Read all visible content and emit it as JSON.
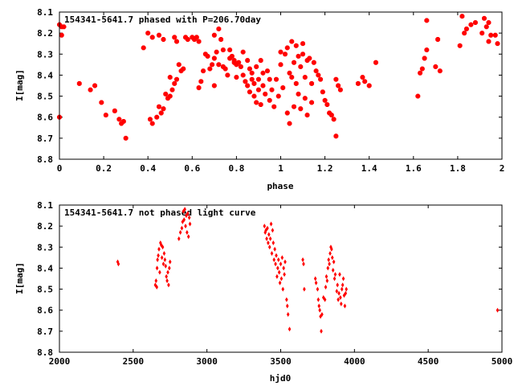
{
  "chart_data": [
    {
      "type": "scatter",
      "title": "154341-5641.7 phased with P=206.70day",
      "xlabel": "phase",
      "ylabel": "I[mag]",
      "xlim": [
        0,
        2
      ],
      "ylim": [
        8.1,
        8.8
      ],
      "y_inverted": true,
      "x_ticks": [
        "0",
        "0.2",
        "0.4",
        "0.6",
        "0.8",
        "1",
        "1.2",
        "1.4",
        "1.6",
        "1.8",
        "2"
      ],
      "y_ticks": [
        "8.1",
        "8.2",
        "8.3",
        "8.4",
        "8.5",
        "8.6",
        "8.7",
        "8.8"
      ],
      "marker": "star",
      "marker_color": "#ff0000",
      "points": [
        [
          0.0,
          8.6
        ],
        [
          0.0,
          8.16
        ],
        [
          0.01,
          8.17
        ],
        [
          0.01,
          8.21
        ],
        [
          0.02,
          8.17
        ],
        [
          0.09,
          8.44
        ],
        [
          0.14,
          8.47
        ],
        [
          0.16,
          8.45
        ],
        [
          0.19,
          8.53
        ],
        [
          0.21,
          8.59
        ],
        [
          0.25,
          8.57
        ],
        [
          0.27,
          8.61
        ],
        [
          0.28,
          8.63
        ],
        [
          0.29,
          8.62
        ],
        [
          0.3,
          8.7
        ],
        [
          0.38,
          8.27
        ],
        [
          0.4,
          8.2
        ],
        [
          0.42,
          8.22
        ],
        [
          0.41,
          8.61
        ],
        [
          0.42,
          8.63
        ],
        [
          0.44,
          8.6
        ],
        [
          0.45,
          8.55
        ],
        [
          0.46,
          8.58
        ],
        [
          0.47,
          8.56
        ],
        [
          0.45,
          8.21
        ],
        [
          0.47,
          8.23
        ],
        [
          0.48,
          8.49
        ],
        [
          0.49,
          8.51
        ],
        [
          0.5,
          8.5
        ],
        [
          0.51,
          8.47
        ],
        [
          0.5,
          8.41
        ],
        [
          0.52,
          8.44
        ],
        [
          0.53,
          8.42
        ],
        [
          0.52,
          8.22
        ],
        [
          0.53,
          8.24
        ],
        [
          0.54,
          8.35
        ],
        [
          0.55,
          8.38
        ],
        [
          0.56,
          8.37
        ],
        [
          0.57,
          8.22
        ],
        [
          0.58,
          8.23
        ],
        [
          0.6,
          8.22
        ],
        [
          0.61,
          8.23
        ],
        [
          0.62,
          8.22
        ],
        [
          0.63,
          8.24
        ],
        [
          0.63,
          8.46
        ],
        [
          0.64,
          8.43
        ],
        [
          0.65,
          8.38
        ],
        [
          0.66,
          8.3
        ],
        [
          0.67,
          8.31
        ],
        [
          0.68,
          8.37
        ],
        [
          0.69,
          8.35
        ],
        [
          0.7,
          8.21
        ],
        [
          0.7,
          8.32
        ],
        [
          0.7,
          8.45
        ],
        [
          0.71,
          8.29
        ],
        [
          0.72,
          8.18
        ],
        [
          0.72,
          8.35
        ],
        [
          0.73,
          8.23
        ],
        [
          0.74,
          8.36
        ],
        [
          0.74,
          8.28
        ],
        [
          0.75,
          8.37
        ],
        [
          0.76,
          8.4
        ],
        [
          0.77,
          8.32
        ],
        [
          0.77,
          8.28
        ],
        [
          0.78,
          8.31
        ],
        [
          0.79,
          8.34
        ],
        [
          0.79,
          8.33
        ],
        [
          0.8,
          8.35
        ],
        [
          0.8,
          8.41
        ],
        [
          0.81,
          8.34
        ],
        [
          0.82,
          8.36
        ],
        [
          0.83,
          8.29
        ],
        [
          0.83,
          8.4
        ],
        [
          0.84,
          8.43
        ],
        [
          0.85,
          8.45
        ],
        [
          0.85,
          8.33
        ],
        [
          0.86,
          8.37
        ],
        [
          0.86,
          8.48
        ],
        [
          0.87,
          8.42
        ],
        [
          0.87,
          8.39
        ],
        [
          0.88,
          8.5
        ],
        [
          0.88,
          8.44
        ],
        [
          0.89,
          8.53
        ],
        [
          0.89,
          8.36
        ],
        [
          0.9,
          8.42
        ],
        [
          0.9,
          8.47
        ],
        [
          0.91,
          8.33
        ],
        [
          0.91,
          8.54
        ],
        [
          0.92,
          8.39
        ],
        [
          0.92,
          8.45
        ],
        [
          0.93,
          8.49
        ],
        [
          0.94,
          8.38
        ],
        [
          0.95,
          8.42
        ],
        [
          0.95,
          8.52
        ],
        [
          0.96,
          8.47
        ],
        [
          0.97,
          8.55
        ],
        [
          0.98,
          8.42
        ],
        [
          0.99,
          8.5
        ],
        [
          1.0,
          8.29
        ],
        [
          1.0,
          8.35
        ],
        [
          1.01,
          8.46
        ],
        [
          1.02,
          8.3
        ],
        [
          1.03,
          8.58
        ],
        [
          1.03,
          8.27
        ],
        [
          1.04,
          8.63
        ],
        [
          1.04,
          8.39
        ],
        [
          1.05,
          8.24
        ],
        [
          1.05,
          8.41
        ],
        [
          1.06,
          8.34
        ],
        [
          1.06,
          8.55
        ],
        [
          1.07,
          8.44
        ],
        [
          1.07,
          8.26
        ],
        [
          1.08,
          8.31
        ],
        [
          1.08,
          8.49
        ],
        [
          1.09,
          8.56
        ],
        [
          1.09,
          8.36
        ],
        [
          1.1,
          8.3
        ],
        [
          1.1,
          8.25
        ],
        [
          1.11,
          8.41
        ],
        [
          1.11,
          8.51
        ],
        [
          1.12,
          8.33
        ],
        [
          1.12,
          8.59
        ],
        [
          1.13,
          8.32
        ],
        [
          1.14,
          8.44
        ],
        [
          1.14,
          8.53
        ],
        [
          1.15,
          8.34
        ],
        [
          1.16,
          8.38
        ],
        [
          1.17,
          8.4
        ],
        [
          1.18,
          8.42
        ],
        [
          1.19,
          8.48
        ],
        [
          1.2,
          8.52
        ],
        [
          1.21,
          8.54
        ],
        [
          1.22,
          8.58
        ],
        [
          1.23,
          8.59
        ],
        [
          1.24,
          8.61
        ],
        [
          1.25,
          8.42
        ],
        [
          1.25,
          8.69
        ],
        [
          1.26,
          8.45
        ],
        [
          1.27,
          8.47
        ],
        [
          1.35,
          8.44
        ],
        [
          1.37,
          8.41
        ],
        [
          1.38,
          8.43
        ],
        [
          1.4,
          8.45
        ],
        [
          1.43,
          8.34
        ],
        [
          1.62,
          8.5
        ],
        [
          1.63,
          8.39
        ],
        [
          1.64,
          8.37
        ],
        [
          1.65,
          8.32
        ],
        [
          1.66,
          8.28
        ],
        [
          1.66,
          8.14
        ],
        [
          1.7,
          8.36
        ],
        [
          1.72,
          8.38
        ],
        [
          1.71,
          8.23
        ],
        [
          1.81,
          8.26
        ],
        [
          1.82,
          8.12
        ],
        [
          1.83,
          8.2
        ],
        [
          1.84,
          8.18
        ],
        [
          1.86,
          8.16
        ],
        [
          1.88,
          8.15
        ],
        [
          1.91,
          8.2
        ],
        [
          1.92,
          8.13
        ],
        [
          1.93,
          8.17
        ],
        [
          1.94,
          8.15
        ],
        [
          1.94,
          8.24
        ],
        [
          1.95,
          8.21
        ],
        [
          1.97,
          8.21
        ],
        [
          1.98,
          8.25
        ]
      ]
    },
    {
      "type": "scatter",
      "title": "154341-5641.7 not phased light curve",
      "xlabel": "hjd0",
      "ylabel": "I[mag]",
      "xlim": [
        2000,
        5000
      ],
      "ylim": [
        8.1,
        8.8
      ],
      "y_inverted": true,
      "x_ticks": [
        "2000",
        "2500",
        "3000",
        "3500",
        "4000",
        "4500",
        "5000"
      ],
      "y_ticks": [
        "8.1",
        "8.2",
        "8.3",
        "8.4",
        "8.5",
        "8.6",
        "8.7",
        "8.8"
      ],
      "marker": "diamond",
      "marker_color": "#ff0000",
      "points": [
        [
          2395,
          8.37
        ],
        [
          2400,
          8.38
        ],
        [
          2650,
          8.48
        ],
        [
          2655,
          8.46
        ],
        [
          2660,
          8.49
        ],
        [
          2662,
          8.4
        ],
        [
          2665,
          8.36
        ],
        [
          2670,
          8.34
        ],
        [
          2675,
          8.31
        ],
        [
          2680,
          8.42
        ],
        [
          2685,
          8.28
        ],
        [
          2690,
          8.29
        ],
        [
          2695,
          8.35
        ],
        [
          2700,
          8.3
        ],
        [
          2705,
          8.38
        ],
        [
          2710,
          8.33
        ],
        [
          2715,
          8.36
        ],
        [
          2720,
          8.39
        ],
        [
          2725,
          8.44
        ],
        [
          2730,
          8.46
        ],
        [
          2735,
          8.42
        ],
        [
          2740,
          8.48
        ],
        [
          2745,
          8.4
        ],
        [
          2750,
          8.37
        ],
        [
          2810,
          8.26
        ],
        [
          2820,
          8.23
        ],
        [
          2830,
          8.21
        ],
        [
          2835,
          8.18
        ],
        [
          2840,
          8.13
        ],
        [
          2845,
          8.17
        ],
        [
          2850,
          8.12
        ],
        [
          2855,
          8.2
        ],
        [
          2860,
          8.15
        ],
        [
          2865,
          8.23
        ],
        [
          2870,
          8.14
        ],
        [
          2875,
          8.25
        ],
        [
          2880,
          8.16
        ],
        [
          2885,
          8.19
        ],
        [
          3390,
          8.2
        ],
        [
          3395,
          8.23
        ],
        [
          3400,
          8.22
        ],
        [
          3405,
          8.26
        ],
        [
          3410,
          8.21
        ],
        [
          3415,
          8.28
        ],
        [
          3420,
          8.24
        ],
        [
          3425,
          8.3
        ],
        [
          3430,
          8.26
        ],
        [
          3435,
          8.19
        ],
        [
          3440,
          8.33
        ],
        [
          3445,
          8.22
        ],
        [
          3450,
          8.28
        ],
        [
          3455,
          8.36
        ],
        [
          3460,
          8.31
        ],
        [
          3465,
          8.38
        ],
        [
          3470,
          8.34
        ],
        [
          3475,
          8.44
        ],
        [
          3480,
          8.4
        ],
        [
          3485,
          8.36
        ],
        [
          3490,
          8.42
        ],
        [
          3495,
          8.47
        ],
        [
          3500,
          8.38
        ],
        [
          3505,
          8.45
        ],
        [
          3510,
          8.35
        ],
        [
          3515,
          8.5
        ],
        [
          3520,
          8.4
        ],
        [
          3525,
          8.43
        ],
        [
          3530,
          8.37
        ],
        [
          3540,
          8.55
        ],
        [
          3545,
          8.58
        ],
        [
          3550,
          8.62
        ],
        [
          3560,
          8.69
        ],
        [
          3650,
          8.36
        ],
        [
          3655,
          8.38
        ],
        [
          3660,
          8.5
        ],
        [
          3735,
          8.45
        ],
        [
          3740,
          8.47
        ],
        [
          3750,
          8.5
        ],
        [
          3755,
          8.55
        ],
        [
          3760,
          8.58
        ],
        [
          3765,
          8.6
        ],
        [
          3770,
          8.63
        ],
        [
          3775,
          8.7
        ],
        [
          3780,
          8.62
        ],
        [
          3790,
          8.54
        ],
        [
          3800,
          8.55
        ],
        [
          3805,
          8.49
        ],
        [
          3810,
          8.44
        ],
        [
          3815,
          8.46
        ],
        [
          3820,
          8.4
        ],
        [
          3825,
          8.36
        ],
        [
          3830,
          8.38
        ],
        [
          3835,
          8.33
        ],
        [
          3840,
          8.3
        ],
        [
          3845,
          8.31
        ],
        [
          3850,
          8.35
        ],
        [
          3855,
          8.41
        ],
        [
          3860,
          8.37
        ],
        [
          3865,
          8.45
        ],
        [
          3870,
          8.43
        ],
        [
          3880,
          8.51
        ],
        [
          3885,
          8.48
        ],
        [
          3890,
          8.55
        ],
        [
          3895,
          8.52
        ],
        [
          3900,
          8.43
        ],
        [
          3905,
          8.54
        ],
        [
          3910,
          8.57
        ],
        [
          3915,
          8.5
        ],
        [
          3920,
          8.48
        ],
        [
          3925,
          8.45
        ],
        [
          3930,
          8.53
        ],
        [
          3935,
          8.58
        ],
        [
          3940,
          8.52
        ],
        [
          3945,
          8.5
        ],
        [
          4970,
          8.6
        ]
      ]
    }
  ]
}
